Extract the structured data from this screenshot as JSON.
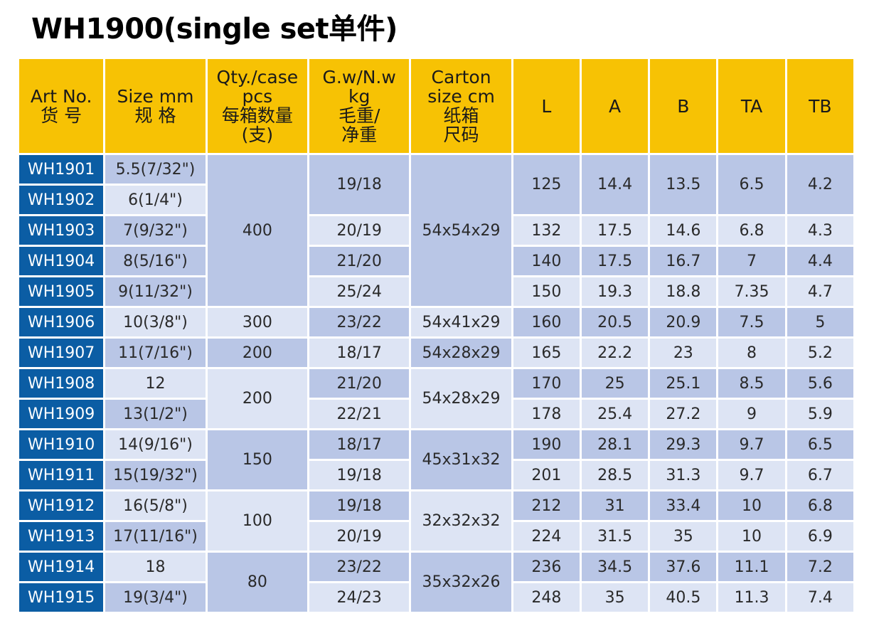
{
  "title": "WH1900(single set单件)",
  "headers": [
    [
      "Art No.",
      "货 号"
    ],
    [
      "Size mm",
      "规 格"
    ],
    [
      "Qty./case",
      "pcs",
      "每箱数量",
      "(支)"
    ],
    [
      "G.w/N.w",
      "kg",
      "毛重/",
      "净重"
    ],
    [
      "Carton",
      "size cm",
      "纸箱",
      "尺码"
    ],
    [
      "L"
    ],
    [
      "A"
    ],
    [
      "B"
    ],
    [
      "TA"
    ],
    [
      "TB"
    ]
  ],
  "rows": [
    {
      "art": "WH1901",
      "size": "5.5(7/32\")",
      "L": "125",
      "A": "14.4",
      "B": "13.5",
      "TA": "6.5",
      "TB": "4.2"
    },
    {
      "art": "WH1902",
      "size": "6(1/4\")"
    },
    {
      "art": "WH1903",
      "size": "7(9/32\")",
      "L": "132",
      "A": "17.5",
      "B": "14.6",
      "TA": "6.8",
      "TB": "4.3"
    },
    {
      "art": "WH1904",
      "size": "8(5/16\")",
      "L": "140",
      "A": "17.5",
      "B": "16.7",
      "TA": "7",
      "TB": "4.4"
    },
    {
      "art": "WH1905",
      "size": "9(11/32\")",
      "L": "150",
      "A": "19.3",
      "B": "18.8",
      "TA": "7.35",
      "TB": "4.7"
    },
    {
      "art": "WH1906",
      "size": "10(3/8\")",
      "L": "160",
      "A": "20.5",
      "B": "20.9",
      "TA": "7.5",
      "TB": "5"
    },
    {
      "art": "WH1907",
      "size": "11(7/16\")",
      "L": "165",
      "A": "22.2",
      "B": "23",
      "TA": "8",
      "TB": "5.2"
    },
    {
      "art": "WH1908",
      "size": "12",
      "L": "170",
      "A": "25",
      "B": "25.1",
      "TA": "8.5",
      "TB": "5.6"
    },
    {
      "art": "WH1909",
      "size": "13(1/2\")",
      "L": "178",
      "A": "25.4",
      "B": "27.2",
      "TA": "9",
      "TB": "5.9"
    },
    {
      "art": "WH1910",
      "size": "14(9/16\")",
      "L": "190",
      "A": "28.1",
      "B": "29.3",
      "TA": "9.7",
      "TB": "6.5"
    },
    {
      "art": "WH1911",
      "size": "15(19/32\")",
      "L": "201",
      "A": "28.5",
      "B": "31.3",
      "TA": "9.7",
      "TB": "6.7"
    },
    {
      "art": "WH1912",
      "size": "16(5/8\")",
      "L": "212",
      "A": "31",
      "B": "33.4",
      "TA": "10",
      "TB": "6.8"
    },
    {
      "art": "WH1913",
      "size": "17(11/16\")",
      "L": "224",
      "A": "31.5",
      "B": "35",
      "TA": "10",
      "TB": "6.9"
    },
    {
      "art": "WH1914",
      "size": "18",
      "L": "236",
      "A": "34.5",
      "B": "37.6",
      "TA": "11.1",
      "TB": "7.2"
    },
    {
      "art": "WH1915",
      "size": "19(3/4\")",
      "L": "248",
      "A": "35",
      "B": "40.5",
      "TA": "11.3",
      "TB": "7.4"
    }
  ],
  "qty_groups": [
    {
      "value": "400"
    },
    {
      "value": "300"
    },
    {
      "value": "200"
    },
    {
      "value": "200"
    },
    {
      "value": "150"
    },
    {
      "value": "100"
    },
    {
      "value": "80"
    }
  ],
  "gw_groups": [
    {
      "value": "19/18"
    },
    {
      "value": "20/19"
    },
    {
      "value": "21/20"
    },
    {
      "value": "25/24"
    },
    {
      "value": "23/22"
    },
    {
      "value": "18/17"
    },
    {
      "value": "21/20"
    },
    {
      "value": "22/21"
    },
    {
      "value": "18/17"
    },
    {
      "value": "19/18"
    },
    {
      "value": "19/18"
    },
    {
      "value": "20/19"
    },
    {
      "value": "23/22"
    },
    {
      "value": "24/23"
    }
  ],
  "carton_groups": [
    {
      "value": "54x54x29"
    },
    {
      "value": "54x41x29"
    },
    {
      "value": "54x28x29"
    },
    {
      "value": "54x28x29"
    },
    {
      "value": "45x31x32"
    },
    {
      "value": "32x32x32"
    },
    {
      "value": "35x32x26"
    }
  ]
}
